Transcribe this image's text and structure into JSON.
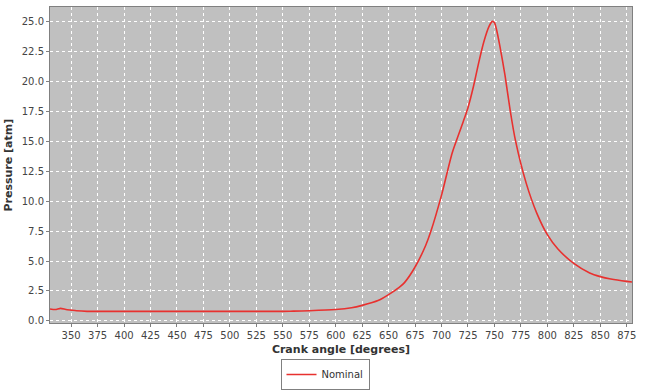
{
  "chart_data": {
    "type": "line",
    "x_label": "Crank angle [degrees]",
    "y_label": "Pressure [atm]",
    "x": [
      330,
      335,
      340,
      345,
      350,
      355,
      365,
      400,
      450,
      500,
      550,
      560,
      575,
      600,
      615,
      625,
      640,
      650,
      660,
      665,
      675,
      685,
      690,
      700,
      710,
      720,
      725,
      730,
      735,
      740,
      745,
      748,
      750,
      752,
      755,
      760,
      765,
      770,
      780,
      790,
      800,
      810,
      825,
      840,
      850,
      860,
      875,
      880
    ],
    "series": [
      {
        "name": "Nominal",
        "color": "#e8312f",
        "values": [
          1.0,
          0.95,
          1.05,
          0.95,
          0.9,
          0.85,
          0.8,
          0.8,
          0.8,
          0.8,
          0.8,
          0.82,
          0.85,
          0.95,
          1.1,
          1.3,
          1.7,
          2.2,
          2.8,
          3.2,
          4.5,
          6.3,
          7.5,
          10.5,
          14.0,
          16.5,
          17.8,
          19.5,
          21.5,
          23.3,
          24.6,
          25.0,
          24.9,
          24.3,
          23.0,
          20.5,
          17.5,
          15.0,
          11.5,
          9.0,
          7.2,
          6.0,
          4.8,
          4.0,
          3.7,
          3.5,
          3.3,
          3.25
        ]
      }
    ],
    "xlim": [
      330,
      880
    ],
    "ylim": [
      -0.2,
      26.2
    ],
    "xticks": [
      350,
      375,
      400,
      425,
      450,
      475,
      500,
      525,
      550,
      575,
      600,
      625,
      650,
      675,
      700,
      725,
      750,
      775,
      800,
      825,
      850,
      875
    ],
    "yticks": [
      {
        "value": 0,
        "label": "0.0"
      },
      2.5,
      {
        "value": 5,
        "label": "5.0"
      },
      7.5,
      {
        "value": 10,
        "label": "10.0"
      },
      12.5,
      {
        "value": 15,
        "label": "15.0"
      },
      17.5,
      {
        "value": 20,
        "label": "20.0"
      },
      22.5,
      {
        "value": 25,
        "label": "25.0"
      }
    ],
    "grid": true,
    "legend": "bottom"
  }
}
